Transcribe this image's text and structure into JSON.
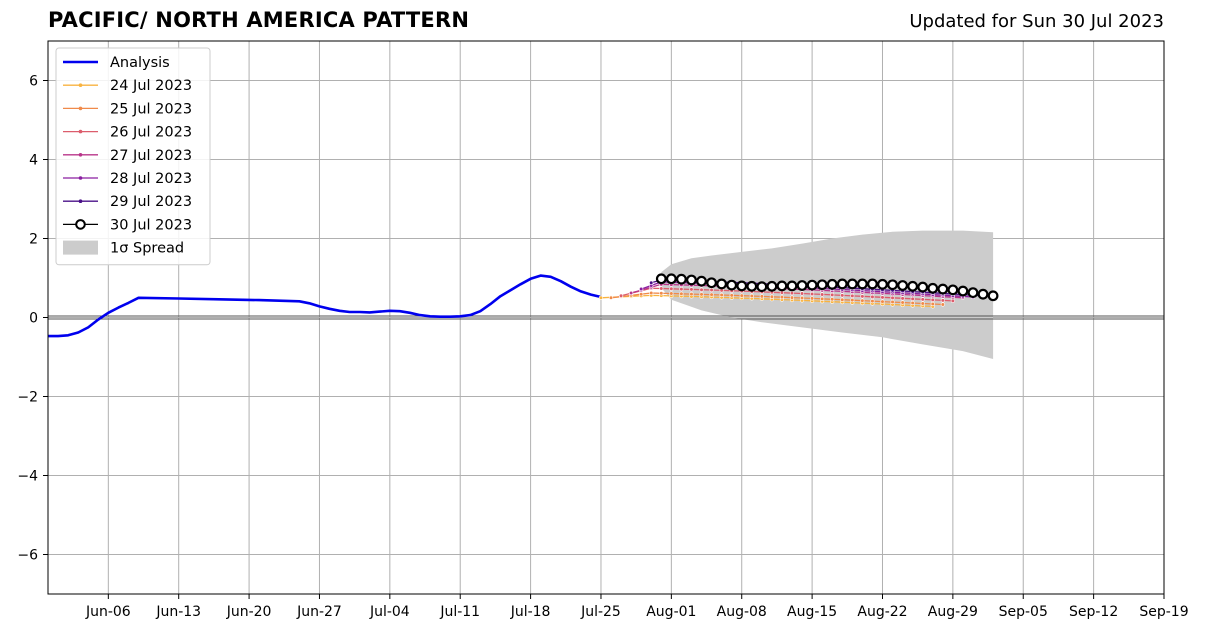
{
  "title": "PACIFIC/ NORTH AMERICA PATTERN",
  "subtitle": "Updated for Sun 30 Jul 2023",
  "chart_data": {
    "type": "line",
    "title": "PACIFIC/ NORTH AMERICA PATTERN",
    "xlabel": "",
    "ylabel": "",
    "xlim": [
      "2023-05-31",
      "2023-09-19"
    ],
    "ylim": [
      -7,
      7
    ],
    "grid": true,
    "legend_position": "top-left",
    "x_ticks": [
      "Jun-06",
      "Jun-13",
      "Jun-20",
      "Jun-27",
      "Jul-04",
      "Jul-11",
      "Jul-18",
      "Jul-25",
      "Aug-01",
      "Aug-08",
      "Aug-15",
      "Aug-22",
      "Aug-29",
      "Sep-05",
      "Sep-12",
      "Sep-19"
    ],
    "x_tick_dates": [
      "2023-06-06",
      "2023-06-13",
      "2023-06-20",
      "2023-06-27",
      "2023-07-04",
      "2023-07-11",
      "2023-07-18",
      "2023-07-25",
      "2023-08-01",
      "2023-08-08",
      "2023-08-15",
      "2023-08-22",
      "2023-08-29",
      "2023-09-05",
      "2023-09-12",
      "2023-09-19"
    ],
    "y_ticks": [
      -6,
      -4,
      -2,
      0,
      2,
      4,
      6
    ],
    "y_tick_labels": [
      "−6",
      "−4",
      "−2",
      "0",
      "2",
      "4",
      "6"
    ],
    "series": [
      {
        "name": "Analysis",
        "color": "#0000ee",
        "style": "line",
        "points": [
          [
            "2023-05-31",
            -0.47
          ],
          [
            "2023-06-01",
            -0.47
          ],
          [
            "2023-06-02",
            -0.45
          ],
          [
            "2023-06-03",
            -0.38
          ],
          [
            "2023-06-04",
            -0.25
          ],
          [
            "2023-06-05",
            -0.05
          ],
          [
            "2023-06-06",
            0.12
          ],
          [
            "2023-06-07",
            0.25
          ],
          [
            "2023-06-08",
            0.37
          ],
          [
            "2023-06-09",
            0.5
          ],
          [
            "2023-06-13",
            0.48
          ],
          [
            "2023-06-17",
            0.46
          ],
          [
            "2023-06-21",
            0.44
          ],
          [
            "2023-06-25",
            0.41
          ],
          [
            "2023-06-26",
            0.36
          ],
          [
            "2023-06-27",
            0.28
          ],
          [
            "2023-06-28",
            0.22
          ],
          [
            "2023-06-29",
            0.17
          ],
          [
            "2023-06-30",
            0.14
          ],
          [
            "2023-07-01",
            0.14
          ],
          [
            "2023-07-02",
            0.13
          ],
          [
            "2023-07-03",
            0.15
          ],
          [
            "2023-07-04",
            0.17
          ],
          [
            "2023-07-05",
            0.16
          ],
          [
            "2023-07-06",
            0.12
          ],
          [
            "2023-07-07",
            0.06
          ],
          [
            "2023-07-08",
            0.03
          ],
          [
            "2023-07-09",
            0.02
          ],
          [
            "2023-07-10",
            0.02
          ],
          [
            "2023-07-11",
            0.03
          ],
          [
            "2023-07-12",
            0.06
          ],
          [
            "2023-07-13",
            0.16
          ],
          [
            "2023-07-14",
            0.34
          ],
          [
            "2023-07-15",
            0.54
          ],
          [
            "2023-07-16",
            0.69
          ],
          [
            "2023-07-17",
            0.84
          ],
          [
            "2023-07-18",
            0.98
          ],
          [
            "2023-07-19",
            1.06
          ],
          [
            "2023-07-20",
            1.03
          ],
          [
            "2023-07-21",
            0.92
          ],
          [
            "2023-07-22",
            0.78
          ],
          [
            "2023-07-23",
            0.66
          ],
          [
            "2023-07-24",
            0.58
          ],
          [
            "2023-07-25",
            0.52
          ]
        ]
      },
      {
        "name": "24 Jul 2023",
        "color": "#f8b340",
        "style": "small-marker",
        "start": "2023-07-25",
        "y0": 0.5,
        "peak": 0.56,
        "peak_day": 5,
        "end": 0.28,
        "days": 33
      },
      {
        "name": "25 Jul 2023",
        "color": "#f08a4a",
        "style": "small-marker",
        "start": "2023-07-26",
        "y0": 0.5,
        "peak": 0.62,
        "peak_day": 4,
        "end": 0.33,
        "days": 33
      },
      {
        "name": "26 Jul 2023",
        "color": "#dc5d6c",
        "style": "small-marker",
        "start": "2023-07-27",
        "y0": 0.55,
        "peak": 0.74,
        "peak_day": 3,
        "end": 0.42,
        "days": 33
      },
      {
        "name": "27 Jul 2023",
        "color": "#b8358a",
        "style": "small-marker",
        "start": "2023-07-28",
        "y0": 0.62,
        "peak": 0.84,
        "peak_day": 3,
        "end": 0.5,
        "days": 33
      },
      {
        "name": "28 Jul 2023",
        "color": "#8a1ea0",
        "style": "small-marker",
        "start": "2023-07-29",
        "y0": 0.72,
        "peak": 0.9,
        "peak_day": 2,
        "end": 0.52,
        "days": 33
      },
      {
        "name": "29 Jul 2023",
        "color": "#4a1088",
        "style": "small-marker",
        "start": "2023-07-30",
        "y0": 0.88,
        "peak": 0.95,
        "peak_day": 1,
        "end": 0.55,
        "days": 33
      },
      {
        "name": "30 Jul 2023",
        "color": "#000000",
        "style": "circle-marker",
        "points": [
          [
            "2023-07-31",
            0.98
          ],
          [
            "2023-08-01",
            0.98
          ],
          [
            "2023-08-02",
            0.97
          ],
          [
            "2023-08-03",
            0.95
          ],
          [
            "2023-08-04",
            0.92
          ],
          [
            "2023-08-05",
            0.88
          ],
          [
            "2023-08-06",
            0.85
          ],
          [
            "2023-08-07",
            0.82
          ],
          [
            "2023-08-08",
            0.8
          ],
          [
            "2023-08-09",
            0.79
          ],
          [
            "2023-08-10",
            0.78
          ],
          [
            "2023-08-11",
            0.79
          ],
          [
            "2023-08-12",
            0.8
          ],
          [
            "2023-08-13",
            0.8
          ],
          [
            "2023-08-14",
            0.81
          ],
          [
            "2023-08-15",
            0.82
          ],
          [
            "2023-08-16",
            0.83
          ],
          [
            "2023-08-17",
            0.84
          ],
          [
            "2023-08-18",
            0.85
          ],
          [
            "2023-08-19",
            0.85
          ],
          [
            "2023-08-20",
            0.85
          ],
          [
            "2023-08-21",
            0.85
          ],
          [
            "2023-08-22",
            0.84
          ],
          [
            "2023-08-23",
            0.83
          ],
          [
            "2023-08-24",
            0.81
          ],
          [
            "2023-08-25",
            0.79
          ],
          [
            "2023-08-26",
            0.77
          ],
          [
            "2023-08-27",
            0.74
          ],
          [
            "2023-08-28",
            0.72
          ],
          [
            "2023-08-29",
            0.7
          ],
          [
            "2023-08-30",
            0.67
          ],
          [
            "2023-08-31",
            0.63
          ],
          [
            "2023-09-01",
            0.59
          ],
          [
            "2023-09-02",
            0.55
          ]
        ]
      }
    ],
    "spread": {
      "name": "1σ Spread",
      "color": "#cccccc",
      "upper": [
        [
          "2023-07-31",
          1.15
        ],
        [
          "2023-08-01",
          1.35
        ],
        [
          "2023-08-03",
          1.5
        ],
        [
          "2023-08-05",
          1.57
        ],
        [
          "2023-08-08",
          1.66
        ],
        [
          "2023-08-11",
          1.75
        ],
        [
          "2023-08-14",
          1.87
        ],
        [
          "2023-08-17",
          2.0
        ],
        [
          "2023-08-20",
          2.1
        ],
        [
          "2023-08-23",
          2.17
        ],
        [
          "2023-08-26",
          2.2
        ],
        [
          "2023-08-30",
          2.2
        ],
        [
          "2023-09-02",
          2.16
        ]
      ],
      "lower": [
        [
          "2023-09-02",
          -1.05
        ],
        [
          "2023-08-30",
          -0.85
        ],
        [
          "2023-08-26",
          -0.68
        ],
        [
          "2023-08-22",
          -0.5
        ],
        [
          "2023-08-18",
          -0.38
        ],
        [
          "2023-08-14",
          -0.25
        ],
        [
          "2023-08-10",
          -0.12
        ],
        [
          "2023-08-07",
          0.0
        ],
        [
          "2023-08-04",
          0.18
        ],
        [
          "2023-08-02",
          0.36
        ],
        [
          "2023-08-01",
          0.45
        ],
        [
          "2023-07-31",
          0.75
        ]
      ]
    }
  }
}
